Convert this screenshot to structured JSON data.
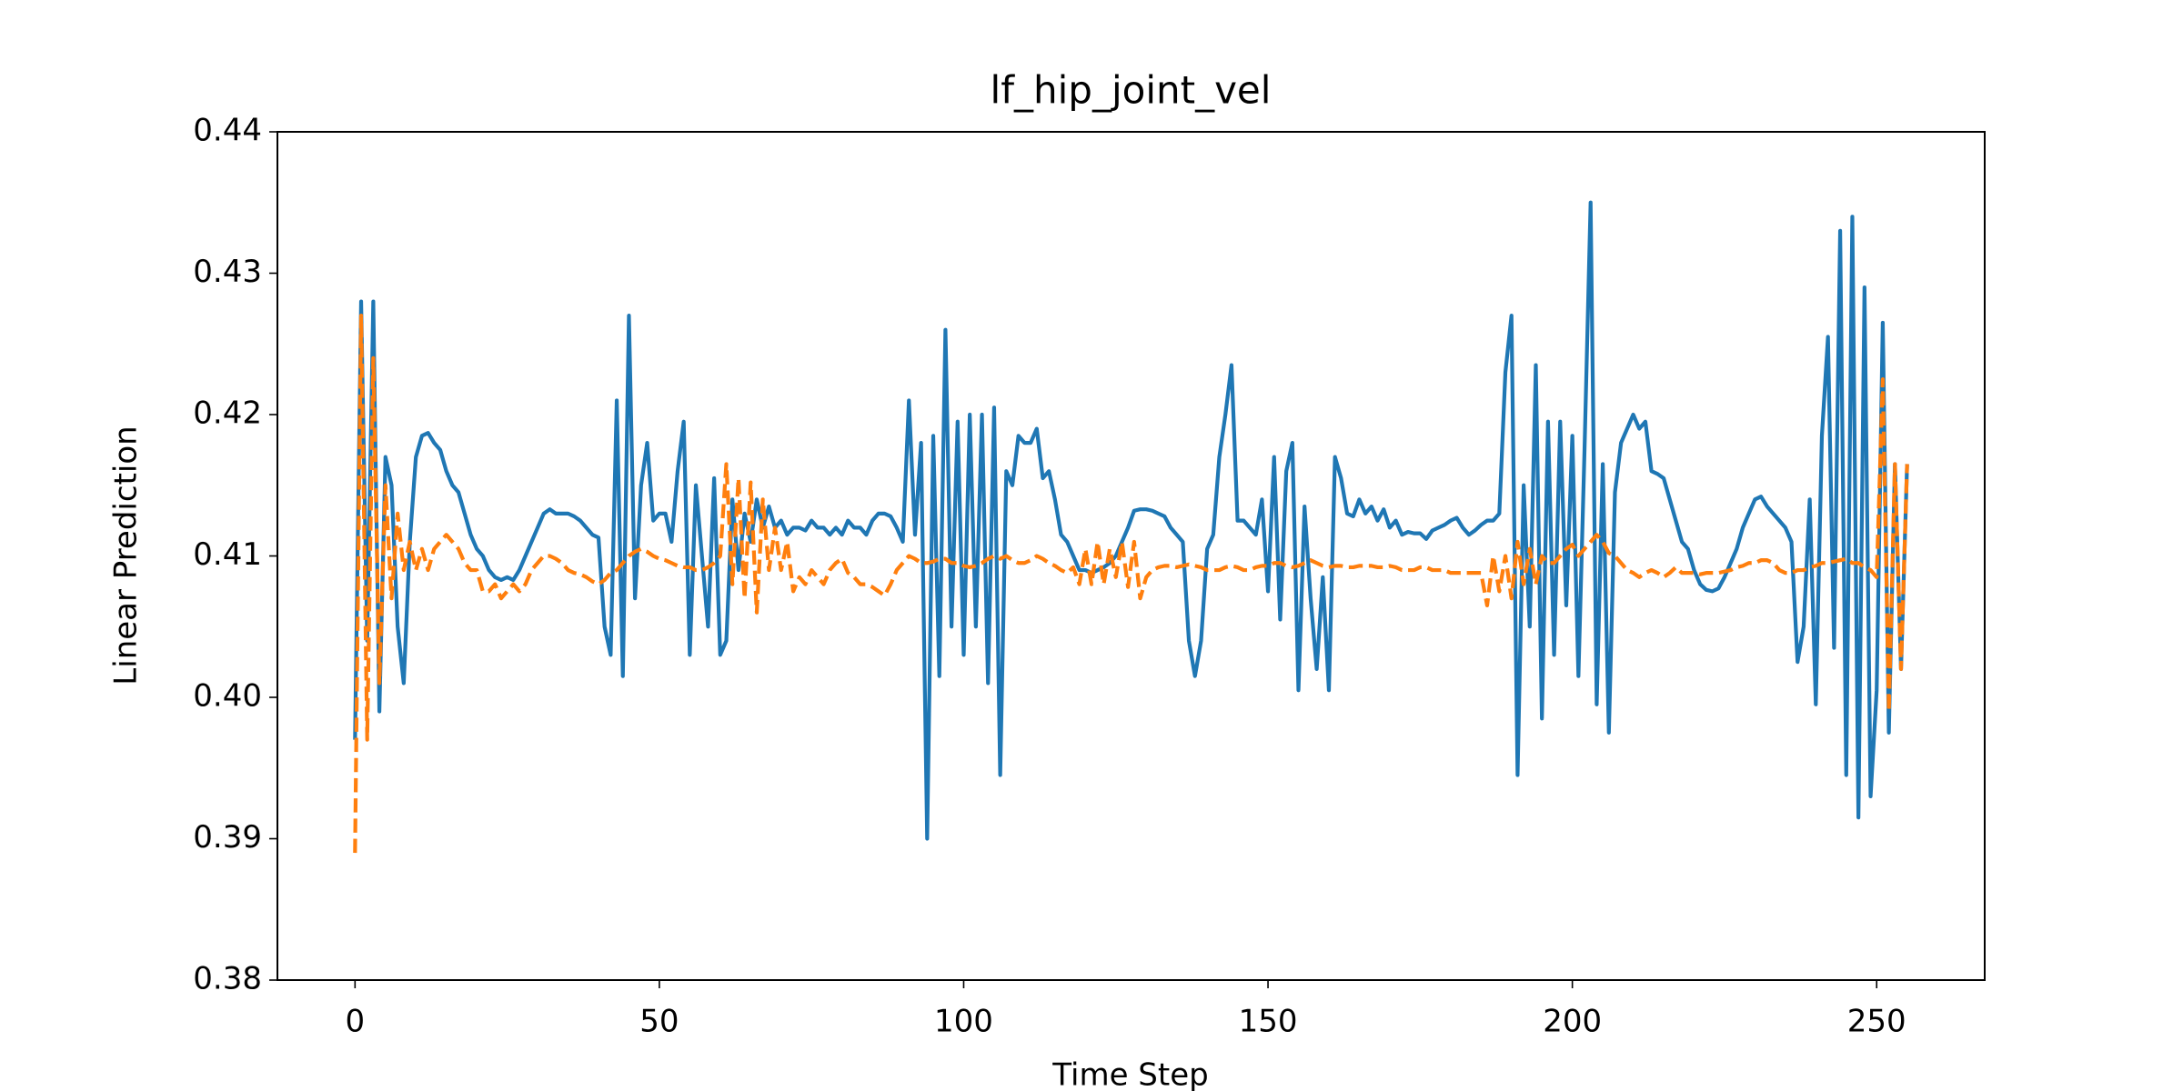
{
  "chart_data": {
    "type": "line",
    "title": "lf_hip_joint_vel",
    "xlabel": "Time Step",
    "ylabel": "Linear Prediction",
    "xlim": [
      -12.75,
      267.75
    ],
    "ylim": [
      0.38,
      0.44
    ],
    "xticks": [
      0,
      50,
      100,
      150,
      200,
      250
    ],
    "yticks": [
      0.38,
      0.39,
      {
        "value": 0.4,
        "label": "0.40"
      },
      0.41,
      0.42,
      0.43,
      0.44
    ],
    "x": [
      0,
      1,
      2,
      3,
      4,
      5,
      6,
      7,
      8,
      9,
      10,
      11,
      12,
      13,
      14,
      15,
      16,
      17,
      18,
      19,
      20,
      21,
      22,
      23,
      24,
      25,
      26,
      27,
      28,
      29,
      30,
      31,
      32,
      33,
      34,
      35,
      36,
      37,
      38,
      39,
      40,
      41,
      42,
      43,
      44,
      45,
      46,
      47,
      48,
      49,
      50,
      51,
      52,
      53,
      54,
      55,
      56,
      57,
      58,
      59,
      60,
      61,
      62,
      63,
      64,
      65,
      66,
      67,
      68,
      69,
      70,
      71,
      72,
      73,
      74,
      75,
      76,
      77,
      78,
      79,
      80,
      81,
      82,
      83,
      84,
      85,
      86,
      87,
      88,
      89,
      90,
      91,
      92,
      93,
      94,
      95,
      96,
      97,
      98,
      99,
      100,
      101,
      102,
      103,
      104,
      105,
      106,
      107,
      108,
      109,
      110,
      111,
      112,
      113,
      114,
      115,
      116,
      117,
      118,
      119,
      120,
      121,
      122,
      123,
      124,
      125,
      126,
      127,
      128,
      129,
      130,
      131,
      132,
      133,
      134,
      135,
      136,
      137,
      138,
      139,
      140,
      141,
      142,
      143,
      144,
      145,
      146,
      147,
      148,
      149,
      150,
      151,
      152,
      153,
      154,
      155,
      156,
      157,
      158,
      159,
      160,
      161,
      162,
      163,
      164,
      165,
      166,
      167,
      168,
      169,
      170,
      171,
      172,
      173,
      174,
      175,
      176,
      177,
      178,
      179,
      180,
      181,
      182,
      183,
      184,
      185,
      186,
      187,
      188,
      189,
      190,
      191,
      192,
      193,
      194,
      195,
      196,
      197,
      198,
      199,
      200,
      201,
      202,
      203,
      204,
      205,
      206,
      207,
      208,
      209,
      210,
      211,
      212,
      213,
      214,
      215,
      216,
      217,
      218,
      219,
      220,
      221,
      222,
      223,
      224,
      225,
      226,
      227,
      228,
      229,
      230,
      231,
      232,
      233,
      234,
      235,
      236,
      237,
      238,
      239,
      240,
      241,
      242,
      243,
      244,
      245,
      246,
      247,
      248,
      249,
      250,
      251,
      252,
      253,
      254,
      255
    ],
    "series": [
      {
        "color": "#1f77b4",
        "dash": false,
        "values": [
          0.397,
          0.428,
          0.404,
          0.428,
          0.399,
          0.417,
          0.415,
          0.405,
          0.401,
          0.411,
          0.417,
          0.4185,
          0.4187,
          0.418,
          0.4175,
          0.416,
          0.415,
          0.4145,
          0.413,
          0.4115,
          0.4105,
          0.41,
          0.409,
          0.4085,
          0.4083,
          0.4085,
          0.4083,
          0.409,
          0.41,
          0.411,
          0.412,
          0.413,
          0.4133,
          0.413,
          0.413,
          0.413,
          0.4128,
          0.4125,
          0.412,
          0.4115,
          0.4113,
          0.405,
          0.403,
          0.421,
          0.4015,
          0.427,
          0.407,
          0.415,
          0.418,
          0.4125,
          0.413,
          0.413,
          0.411,
          0.416,
          0.4195,
          0.403,
          0.415,
          0.41,
          0.405,
          0.4155,
          0.403,
          0.404,
          0.414,
          0.409,
          0.413,
          0.411,
          0.414,
          0.412,
          0.4135,
          0.412,
          0.4125,
          0.4115,
          0.412,
          0.412,
          0.4118,
          0.4125,
          0.412,
          0.412,
          0.4115,
          0.412,
          0.4115,
          0.4125,
          0.412,
          0.412,
          0.4115,
          0.4125,
          0.413,
          0.413,
          0.4128,
          0.412,
          0.411,
          0.421,
          0.4115,
          0.418,
          0.39,
          0.4185,
          0.4015,
          0.426,
          0.405,
          0.4195,
          0.403,
          0.42,
          0.405,
          0.42,
          0.401,
          0.4205,
          0.3945,
          0.416,
          0.415,
          0.4185,
          0.418,
          0.418,
          0.419,
          0.4155,
          0.416,
          0.414,
          0.4115,
          0.411,
          0.41,
          0.409,
          0.409,
          0.4088,
          0.409,
          0.4092,
          0.4095,
          0.41,
          0.411,
          0.412,
          0.4132,
          0.4133,
          0.4133,
          0.4132,
          0.413,
          0.4128,
          0.412,
          0.4115,
          0.411,
          0.404,
          0.4015,
          0.404,
          0.4105,
          0.4115,
          0.417,
          0.42,
          0.4235,
          0.4125,
          0.4125,
          0.412,
          0.4115,
          0.414,
          0.4075,
          0.417,
          0.4055,
          0.416,
          0.418,
          0.4005,
          0.4135,
          0.407,
          0.402,
          0.4085,
          0.4005,
          0.417,
          0.4155,
          0.413,
          0.4128,
          0.414,
          0.413,
          0.4135,
          0.4125,
          0.4133,
          0.412,
          0.4125,
          0.4115,
          0.4117,
          0.4116,
          0.4116,
          0.4112,
          0.4118,
          0.412,
          0.4122,
          0.4125,
          0.4127,
          0.412,
          0.4115,
          0.4118,
          0.4122,
          0.4125,
          0.4125,
          0.413,
          0.423,
          0.427,
          0.3945,
          0.415,
          0.405,
          0.4235,
          0.3985,
          0.4195,
          0.403,
          0.4195,
          0.4065,
          0.4185,
          0.4015,
          0.4175,
          0.435,
          0.3995,
          0.4165,
          0.3975,
          0.4145,
          0.418,
          0.419,
          0.42,
          0.419,
          0.4195,
          0.416,
          0.4158,
          0.4155,
          0.414,
          0.4125,
          0.411,
          0.4105,
          0.409,
          0.408,
          0.4076,
          0.4075,
          0.4077,
          0.4085,
          0.4095,
          0.4105,
          0.412,
          0.413,
          0.414,
          0.4142,
          0.4135,
          0.413,
          0.4125,
          0.412,
          0.411,
          0.4025,
          0.405,
          0.414,
          0.3995,
          0.4185,
          0.4255,
          0.4035,
          0.433,
          0.3945,
          0.434,
          0.3915,
          0.429,
          0.393,
          0.4005,
          0.4265,
          0.3975,
          0.4165,
          0.402,
          0.4165
        ]
      },
      {
        "color": "#ff7f0e",
        "dash": true,
        "values": [
          0.389,
          0.427,
          0.397,
          0.424,
          0.401,
          0.415,
          0.407,
          0.413,
          0.409,
          0.411,
          0.409,
          0.4105,
          0.409,
          0.4105,
          0.411,
          0.4115,
          0.411,
          0.4105,
          0.4095,
          0.409,
          0.409,
          0.4075,
          0.4075,
          0.408,
          0.407,
          0.4075,
          0.408,
          0.4075,
          0.408,
          0.409,
          0.4095,
          0.41,
          0.41,
          0.4098,
          0.4095,
          0.409,
          0.4088,
          0.4087,
          0.4085,
          0.4082,
          0.408,
          0.4083,
          0.4088,
          0.409,
          0.4095,
          0.41,
          0.4103,
          0.4105,
          0.4103,
          0.41,
          0.4098,
          0.4097,
          0.4095,
          0.4093,
          0.4092,
          0.4092,
          0.409,
          0.409,
          0.4092,
          0.4095,
          0.41,
          0.4165,
          0.408,
          0.4155,
          0.407,
          0.4152,
          0.406,
          0.414,
          0.409,
          0.412,
          0.409,
          0.411,
          0.4075,
          0.4085,
          0.408,
          0.409,
          0.4085,
          0.408,
          0.409,
          0.4095,
          0.4098,
          0.4088,
          0.4085,
          0.408,
          0.408,
          0.4078,
          0.4075,
          0.4072,
          0.408,
          0.409,
          0.4095,
          0.41,
          0.4098,
          0.4095,
          0.4095,
          0.4096,
          0.4098,
          0.4098,
          0.4095,
          0.4095,
          0.4093,
          0.4092,
          0.4093,
          0.4095,
          0.4098,
          0.41,
          0.4098,
          0.41,
          0.4097,
          0.4095,
          0.4095,
          0.4097,
          0.41,
          0.4098,
          0.4095,
          0.4093,
          0.409,
          0.4088,
          0.4092,
          0.408,
          0.4105,
          0.408,
          0.411,
          0.408,
          0.4105,
          0.4085,
          0.411,
          0.4078,
          0.411,
          0.407,
          0.4085,
          0.409,
          0.4092,
          0.4093,
          0.4093,
          0.4092,
          0.4093,
          0.4094,
          0.4093,
          0.4092,
          0.409,
          0.409,
          0.409,
          0.4092,
          0.4093,
          0.4092,
          0.409,
          0.409,
          0.4092,
          0.4093,
          0.4093,
          0.4095,
          0.4095,
          0.4093,
          0.4092,
          0.4093,
          0.4095,
          0.4097,
          0.4095,
          0.4093,
          0.4092,
          0.4093,
          0.4093,
          0.4092,
          0.4092,
          0.4093,
          0.4093,
          0.4093,
          0.4092,
          0.4092,
          0.4093,
          0.4092,
          0.409,
          0.409,
          0.409,
          0.4092,
          0.4092,
          0.409,
          0.409,
          0.409,
          0.4088,
          0.4088,
          0.4088,
          0.4088,
          0.4088,
          0.4088,
          0.4065,
          0.41,
          0.4075,
          0.41,
          0.407,
          0.411,
          0.408,
          0.4105,
          0.408,
          0.41,
          0.4095,
          0.4095,
          0.41,
          0.4105,
          0.4108,
          0.41,
          0.4105,
          0.411,
          0.4115,
          0.411,
          0.4102,
          0.41,
          0.4095,
          0.409,
          0.4088,
          0.4085,
          0.4088,
          0.409,
          0.4088,
          0.4085,
          0.4088,
          0.4092,
          0.4088,
          0.4088,
          0.4088,
          0.4087,
          0.4088,
          0.4088,
          0.4088,
          0.4089,
          0.409,
          0.4092,
          0.4093,
          0.4095,
          0.4095,
          0.4097,
          0.4097,
          0.4095,
          0.409,
          0.4088,
          0.4088,
          0.409,
          0.409,
          0.4092,
          0.4093,
          0.4095,
          0.4095,
          0.4096,
          0.4097,
          0.4098,
          0.4095,
          0.4095,
          0.4092,
          0.409,
          0.4085,
          0.4225,
          0.399,
          0.4165,
          0.402,
          0.4165
        ]
      }
    ]
  }
}
